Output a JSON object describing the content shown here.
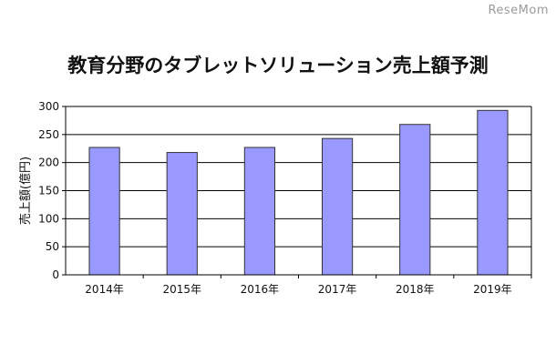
{
  "watermark": "ReseMom",
  "chart_data": {
    "type": "bar",
    "title": "教育分野のタブレットソリューション売上額予測",
    "xlabel": "",
    "ylabel": "売上額(億円)",
    "categories": [
      "2014年",
      "2015年",
      "2016年",
      "2017年",
      "2018年",
      "2019年"
    ],
    "values": [
      227,
      218,
      227,
      243,
      268,
      293
    ],
    "ylim": [
      0,
      300
    ],
    "yticks": [
      0,
      50,
      100,
      150,
      200,
      250,
      300
    ],
    "grid": true,
    "legend": "none",
    "colors": {
      "bar_fill": "#9999ff",
      "bar_stroke": "#333333",
      "grid": "#000000"
    }
  }
}
